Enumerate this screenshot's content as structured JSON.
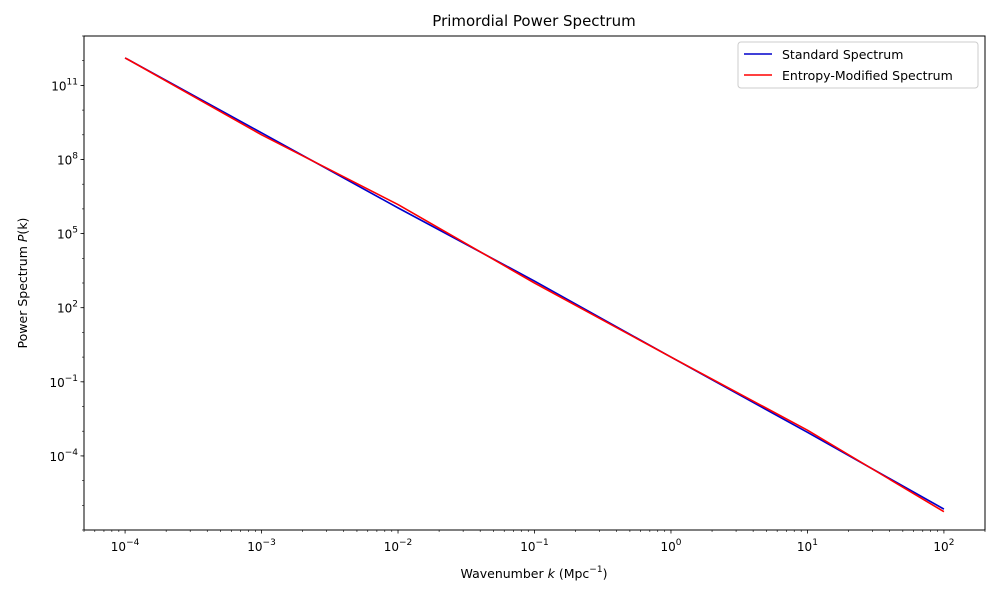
{
  "chart_data": {
    "type": "line",
    "title": "Primordial Power Spectrum",
    "xlabel": "Wavenumber",
    "xlabel_var": "k",
    "xlabel_unit": "(Mpc",
    "xlabel_unit_exp": "−1",
    "xlabel_unit_close": ")",
    "ylabel": "Power Spectrum",
    "ylabel_var": "P",
    "ylabel_arg": "(k)",
    "x_scale": "log",
    "y_scale": "log",
    "xlim": [
      5e-05,
      200
    ],
    "ylim": [
      1e-07,
      10000000000000.0
    ],
    "grid": false,
    "legend_position": "top-right",
    "x_ticks": [
      {
        "value": 0.0001,
        "base": "10",
        "exp": "−4"
      },
      {
        "value": 0.001,
        "base": "10",
        "exp": "−3"
      },
      {
        "value": 0.01,
        "base": "10",
        "exp": "−2"
      },
      {
        "value": 0.1,
        "base": "10",
        "exp": "−1"
      },
      {
        "value": 1,
        "base": "10",
        "exp": "0"
      },
      {
        "value": 10,
        "base": "10",
        "exp": "1"
      },
      {
        "value": 100,
        "base": "10",
        "exp": "2"
      }
    ],
    "y_ticks": [
      {
        "value": 0.0001,
        "base": "10",
        "exp": "−4"
      },
      {
        "value": 0.1,
        "base": "10",
        "exp": "−1"
      },
      {
        "value": 100,
        "base": "10",
        "exp": "2"
      },
      {
        "value": 100000,
        "base": "10",
        "exp": "5"
      },
      {
        "value": 100000000,
        "base": "10",
        "exp": "8"
      },
      {
        "value": 100000000000,
        "base": "10",
        "exp": "11"
      }
    ],
    "series": [
      {
        "name": "Standard Spectrum",
        "color": "#0000cc",
        "points": [
          [
            0.0001,
            1300000000000.0
          ],
          [
            0.001,
            1200000000.0
          ],
          [
            0.01,
            1100000.0
          ],
          [
            0.1,
            1200.0
          ],
          [
            1,
            1.0
          ],
          [
            10,
            0.0009
          ],
          [
            100,
            7e-07
          ]
        ]
      },
      {
        "name": "Entropy-Modified Spectrum",
        "color": "#ff0000",
        "points": [
          [
            0.0001,
            1300000000000.0
          ],
          [
            0.001,
            1000000000.0
          ],
          [
            0.01,
            1500000.0
          ],
          [
            0.1,
            1000.0
          ],
          [
            1,
            1.0
          ],
          [
            10,
            0.0011
          ],
          [
            100,
            5.5e-07
          ]
        ]
      }
    ]
  }
}
